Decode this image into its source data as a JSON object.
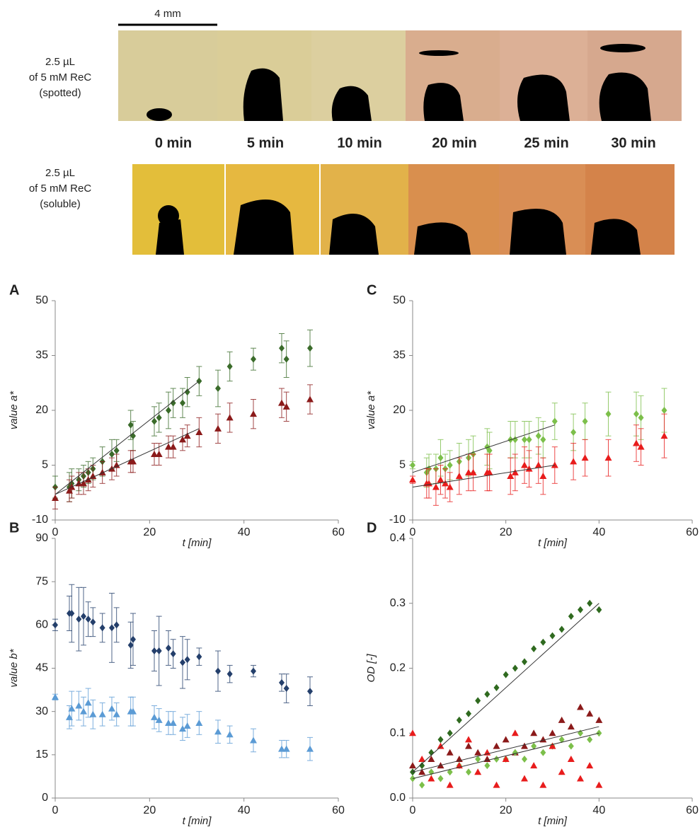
{
  "photos": {
    "scale_bar": "4 mm",
    "rows": [
      {
        "label": [
          "2.5 µL",
          "of 5 mM ReC",
          "(spotted)"
        ]
      },
      {
        "label": [
          "2.5 µL",
          "of 5 mM ReC",
          "(soluble)"
        ]
      }
    ],
    "times": [
      "0 min",
      "5 min",
      "10 min",
      "20 min",
      "25 min",
      "30 min"
    ]
  },
  "chart_data": [
    {
      "type": "scatter",
      "panel_label": "A",
      "ylabel": "value a*",
      "xlabel": "t [min]",
      "xlim": [
        0,
        60
      ],
      "xticks": [
        0,
        20,
        40,
        60
      ],
      "ylim": [
        -10,
        50
      ],
      "yticks": [
        -10,
        5,
        20,
        35,
        50
      ],
      "x": [
        0,
        3,
        3.5,
        5,
        6,
        7,
        8,
        10,
        12,
        13,
        16,
        16.5,
        21,
        22,
        24,
        25,
        27,
        28,
        30.5,
        34.5,
        37,
        42,
        48,
        49,
        54
      ],
      "series": [
        {
          "color": "#3a6b2a",
          "marker": "diamond",
          "values": [
            -1,
            -1,
            0,
            1,
            2,
            3,
            4,
            6,
            8,
            9,
            16,
            13,
            17,
            18,
            20,
            22,
            22,
            25,
            28,
            26,
            32,
            34,
            37,
            34,
            37
          ],
          "errors": [
            3,
            4,
            4,
            3,
            3,
            3,
            3,
            4,
            4,
            3,
            4,
            4,
            4,
            4,
            5,
            4,
            4,
            4,
            4,
            5,
            4,
            3,
            4,
            5,
            5
          ]
        },
        {
          "color": "#8b1a1a",
          "marker": "triangle",
          "values": [
            -4,
            -2,
            -1,
            0,
            0,
            1,
            2,
            3,
            4,
            5,
            6,
            6,
            8,
            8,
            10,
            10,
            12,
            13,
            14,
            15,
            18,
            19,
            22,
            21,
            23
          ],
          "errors": [
            3,
            3,
            3,
            3,
            3,
            3,
            3,
            3,
            3,
            3,
            3,
            3,
            3,
            3,
            3,
            3,
            3,
            3,
            4,
            4,
            4,
            4,
            4,
            4,
            4
          ]
        }
      ],
      "trendlines": [
        {
          "color": "#333",
          "x": [
            0,
            30.5
          ],
          "y": [
            -3,
            28
          ]
        },
        {
          "color": "#333",
          "x": [
            0,
            30.5
          ],
          "y": [
            -3,
            15
          ]
        }
      ]
    },
    {
      "type": "scatter",
      "panel_label": "B",
      "ylabel": "value b*",
      "xlabel": "t [min]",
      "xlim": [
        0,
        60
      ],
      "xticks": [
        0,
        20,
        40,
        60
      ],
      "ylim": [
        0,
        90
      ],
      "yticks": [
        0,
        15,
        30,
        45,
        60,
        75,
        90
      ],
      "x": [
        0,
        3,
        3.5,
        5,
        6,
        7,
        8,
        10,
        12,
        13,
        16,
        16.5,
        21,
        22,
        24,
        25,
        27,
        28,
        30.5,
        34.5,
        37,
        42,
        48,
        49,
        54
      ],
      "series": [
        {
          "color": "#243f6b",
          "marker": "diamond",
          "values": [
            60,
            64,
            64,
            62,
            63,
            62,
            61,
            59,
            59,
            60,
            53,
            55,
            51,
            51,
            52,
            50,
            47,
            48,
            49,
            44,
            43,
            44,
            40,
            38,
            37
          ],
          "errors": [
            2,
            6,
            10,
            11,
            10,
            6,
            5,
            5,
            12,
            6,
            8,
            9,
            7,
            12,
            6,
            5,
            9,
            7,
            3,
            7,
            3,
            2,
            3,
            5,
            5
          ]
        },
        {
          "color": "#5b9bd5",
          "marker": "triangle",
          "values": [
            35,
            28,
            31,
            32,
            30,
            33,
            29,
            29,
            31,
            29,
            30,
            30,
            28,
            27,
            26,
            26,
            24,
            25,
            26,
            23,
            22,
            20,
            17,
            17,
            17
          ],
          "errors": [
            1,
            4,
            6,
            5,
            5,
            5,
            5,
            4,
            4,
            4,
            5,
            5,
            4,
            4,
            4,
            4,
            4,
            4,
            4,
            4,
            3,
            4,
            3,
            3,
            4
          ]
        }
      ]
    },
    {
      "type": "scatter",
      "panel_label": "C",
      "ylabel": "value a*",
      "xlabel": "t [min]",
      "xlim": [
        0,
        60
      ],
      "xticks": [
        0,
        20,
        40,
        60
      ],
      "ylim": [
        -10,
        50
      ],
      "yticks": [
        -10,
        5,
        20,
        35,
        50
      ],
      "x": [
        0,
        3,
        3.5,
        5,
        6,
        7,
        8,
        10,
        12,
        13,
        16,
        16.5,
        21,
        22,
        24,
        25,
        27,
        28,
        30.5,
        34.5,
        37,
        42,
        48,
        49,
        54
      ],
      "series": [
        {
          "color": "#7cbf4a",
          "marker": "diamond",
          "values": [
            5,
            3,
            4,
            4,
            7,
            4,
            5,
            6,
            7,
            8,
            10,
            9,
            12,
            12,
            12,
            12,
            13,
            12,
            17,
            14,
            17,
            19,
            19,
            18,
            20
          ],
          "errors": [
            1,
            4,
            4,
            4,
            5,
            4,
            4,
            5,
            5,
            5,
            5,
            5,
            5,
            5,
            5,
            5,
            5,
            5,
            5,
            5,
            5,
            6,
            6,
            6,
            6
          ]
        },
        {
          "color": "#e81c1c",
          "marker": "triangle",
          "values": [
            1,
            0,
            0,
            -1,
            1,
            0,
            -1,
            2,
            3,
            3,
            3,
            3,
            2,
            3,
            5,
            4,
            5,
            2,
            5,
            6,
            7,
            7,
            11,
            10,
            13
          ],
          "errors": [
            1,
            4,
            4,
            5,
            4,
            4,
            4,
            5,
            5,
            5,
            5,
            5,
            5,
            5,
            5,
            5,
            5,
            5,
            5,
            5,
            5,
            5,
            5,
            5,
            6
          ]
        }
      ],
      "trendlines": [
        {
          "color": "#333",
          "x": [
            0,
            30.5
          ],
          "y": [
            3,
            16
          ]
        },
        {
          "color": "#333",
          "x": [
            0,
            30.5
          ],
          "y": [
            -1,
            5
          ]
        }
      ]
    },
    {
      "type": "scatter",
      "panel_label": "D",
      "ylabel": "OD [-]",
      "xlabel": "t [min]",
      "xlim": [
        0,
        60
      ],
      "xticks": [
        0,
        20,
        40,
        60
      ],
      "ylim": [
        0,
        0.4
      ],
      "yticks": [
        {
          "value": 0,
          "label": "0.0"
        },
        0.1,
        0.2,
        0.3,
        0.4
      ],
      "x": [
        0,
        2,
        4,
        6,
        8,
        10,
        12,
        14,
        16,
        18,
        20,
        22,
        24,
        26,
        28,
        30,
        32,
        34,
        36,
        38,
        40
      ],
      "series": [
        {
          "color": "#2f6a1f",
          "marker": "diamond",
          "values": [
            0.04,
            0.05,
            0.07,
            0.09,
            0.1,
            0.12,
            0.13,
            0.15,
            0.16,
            0.17,
            0.19,
            0.2,
            0.21,
            0.23,
            0.24,
            0.25,
            0.26,
            0.28,
            0.29,
            0.3,
            0.29
          ]
        },
        {
          "color": "#8b1a1a",
          "marker": "triangle",
          "values": [
            0.05,
            0.04,
            0.06,
            0.05,
            0.07,
            0.06,
            0.08,
            0.07,
            0.06,
            0.08,
            0.09,
            0.07,
            0.08,
            0.1,
            0.09,
            0.1,
            0.12,
            0.11,
            0.14,
            0.13,
            0.12
          ]
        },
        {
          "color": "#7cbf4a",
          "marker": "diamond",
          "values": [
            0.03,
            0.02,
            0.04,
            0.03,
            0.04,
            0.05,
            0.04,
            0.06,
            0.05,
            0.06,
            0.06,
            0.07,
            0.06,
            0.08,
            0.07,
            0.08,
            0.09,
            0.08,
            0.1,
            0.09,
            0.1
          ]
        },
        {
          "color": "#e81c1c",
          "marker": "triangle",
          "values": [
            0.1,
            0.06,
            0.03,
            0.08,
            0.02,
            0.05,
            0.09,
            0.04,
            0.07,
            0.02,
            0.06,
            0.1,
            0.03,
            0.05,
            0.02,
            0.08,
            0.04,
            0.06,
            0.03,
            0.05,
            0.02
          ]
        }
      ],
      "trendlines": [
        {
          "color": "#333",
          "x": [
            0,
            40
          ],
          "y": [
            0.04,
            0.3
          ]
        },
        {
          "color": "#333",
          "x": [
            0,
            40
          ],
          "y": [
            0.04,
            0.11
          ]
        },
        {
          "color": "#333",
          "x": [
            0,
            40
          ],
          "y": [
            0.03,
            0.1
          ]
        }
      ]
    }
  ]
}
